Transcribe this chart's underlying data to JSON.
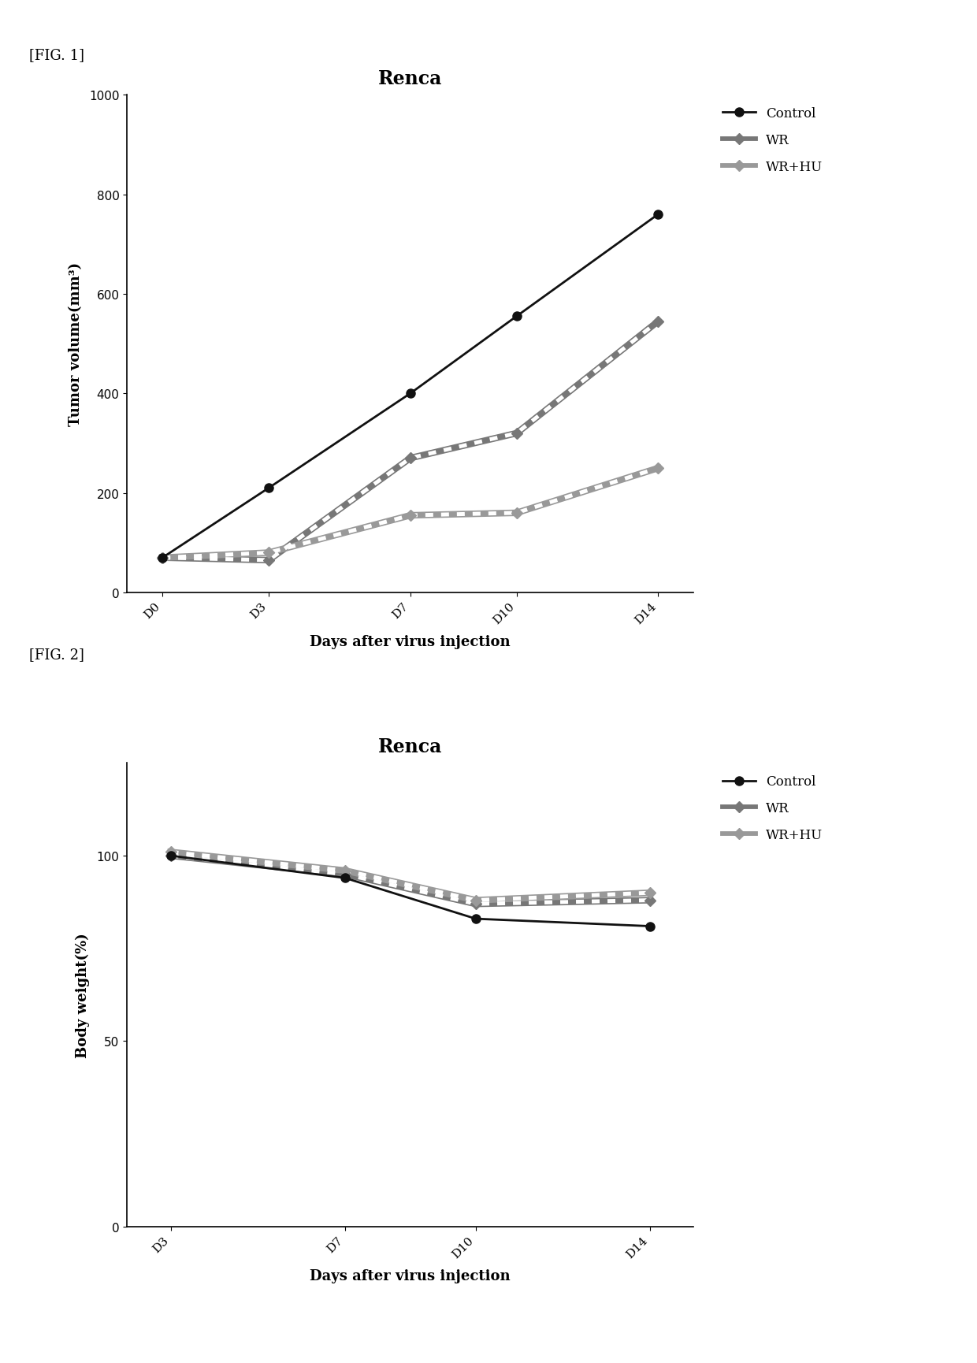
{
  "fig1": {
    "title": "Renca",
    "xlabel": "Days after virus injection",
    "ylabel": "Tumor volume(mm³)",
    "x_labels": [
      "D0",
      "D3",
      "D7",
      "D10",
      "D14"
    ],
    "x_values": [
      0,
      3,
      7,
      10,
      14
    ],
    "series": [
      {
        "name": "Control",
        "y": [
          70,
          210,
          400,
          555,
          760
        ],
        "color": "#111111",
        "linestyle": "-",
        "marker": "o",
        "markersize": 8,
        "linewidth": 2.0,
        "markerfacecolor": "#111111",
        "use_hatch": false
      },
      {
        "name": "WR",
        "y": [
          70,
          65,
          270,
          320,
          545
        ],
        "color": "#777777",
        "linestyle": "-",
        "marker": "D",
        "markersize": 7,
        "linewidth": 6.0,
        "markerfacecolor": "#777777",
        "use_hatch": true
      },
      {
        "name": "WR+HU",
        "y": [
          70,
          80,
          155,
          160,
          250
        ],
        "color": "#999999",
        "linestyle": "-",
        "marker": "D",
        "markersize": 7,
        "linewidth": 6.0,
        "markerfacecolor": "#999999",
        "use_hatch": true
      }
    ],
    "ylim": [
      0,
      1000
    ],
    "yticks": [
      0,
      200,
      400,
      600,
      800,
      1000
    ],
    "xlim": [
      -1,
      15
    ]
  },
  "fig2": {
    "title": "Renca",
    "xlabel": "Days after virus injection",
    "ylabel": "Body weight(%)",
    "x_labels": [
      "D3",
      "D7",
      "D10",
      "D14"
    ],
    "x_values": [
      3,
      7,
      10,
      14
    ],
    "series": [
      {
        "name": "Control",
        "y": [
          100,
          94,
          83,
          81
        ],
        "color": "#111111",
        "linestyle": "-",
        "marker": "o",
        "markersize": 8,
        "linewidth": 2.0,
        "markerfacecolor": "#111111",
        "use_hatch": false
      },
      {
        "name": "WR",
        "y": [
          100,
          95,
          87,
          88
        ],
        "color": "#777777",
        "linestyle": "-",
        "marker": "D",
        "markersize": 7,
        "linewidth": 6.0,
        "markerfacecolor": "#777777",
        "use_hatch": true
      },
      {
        "name": "WR+HU",
        "y": [
          101,
          96,
          88,
          90
        ],
        "color": "#999999",
        "linestyle": "-",
        "marker": "D",
        "markersize": 7,
        "linewidth": 6.0,
        "markerfacecolor": "#999999",
        "use_hatch": true
      }
    ],
    "ylim": [
      0,
      125
    ],
    "yticks": [
      0,
      50,
      100
    ],
    "xlim": [
      2,
      15
    ]
  },
  "fig_label1": "[FIG. 1]",
  "fig_label2": "[FIG. 2]",
  "background_color": "#ffffff",
  "title_fontsize": 17,
  "label_fontsize": 13,
  "tick_fontsize": 11,
  "legend_fontsize": 12
}
